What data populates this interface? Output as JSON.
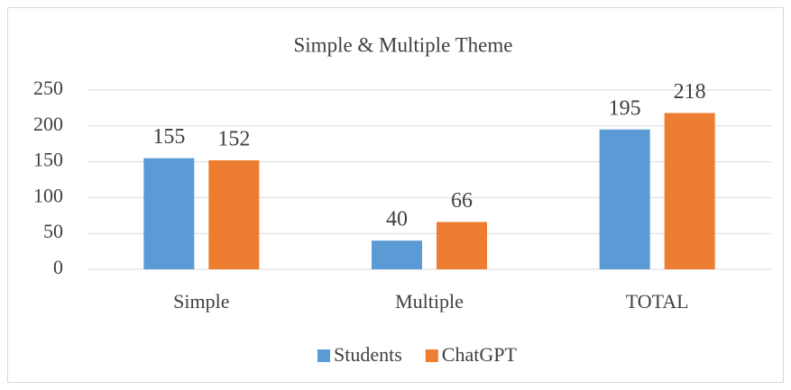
{
  "chart_data": {
    "type": "bar",
    "title": "Simple & Multiple Theme",
    "categories": [
      "Simple",
      "Multiple",
      "TOTAL"
    ],
    "series": [
      {
        "name": "Students",
        "color": "#5b9bd5",
        "values": [
          155,
          40,
          195
        ]
      },
      {
        "name": "ChatGPT",
        "color": "#ed7d31",
        "values": [
          152,
          66,
          218
        ]
      }
    ],
    "ylim": [
      0,
      250
    ],
    "yticks": [
      0,
      50,
      100,
      150,
      200,
      250
    ],
    "grid": true,
    "legend": "bottom"
  }
}
